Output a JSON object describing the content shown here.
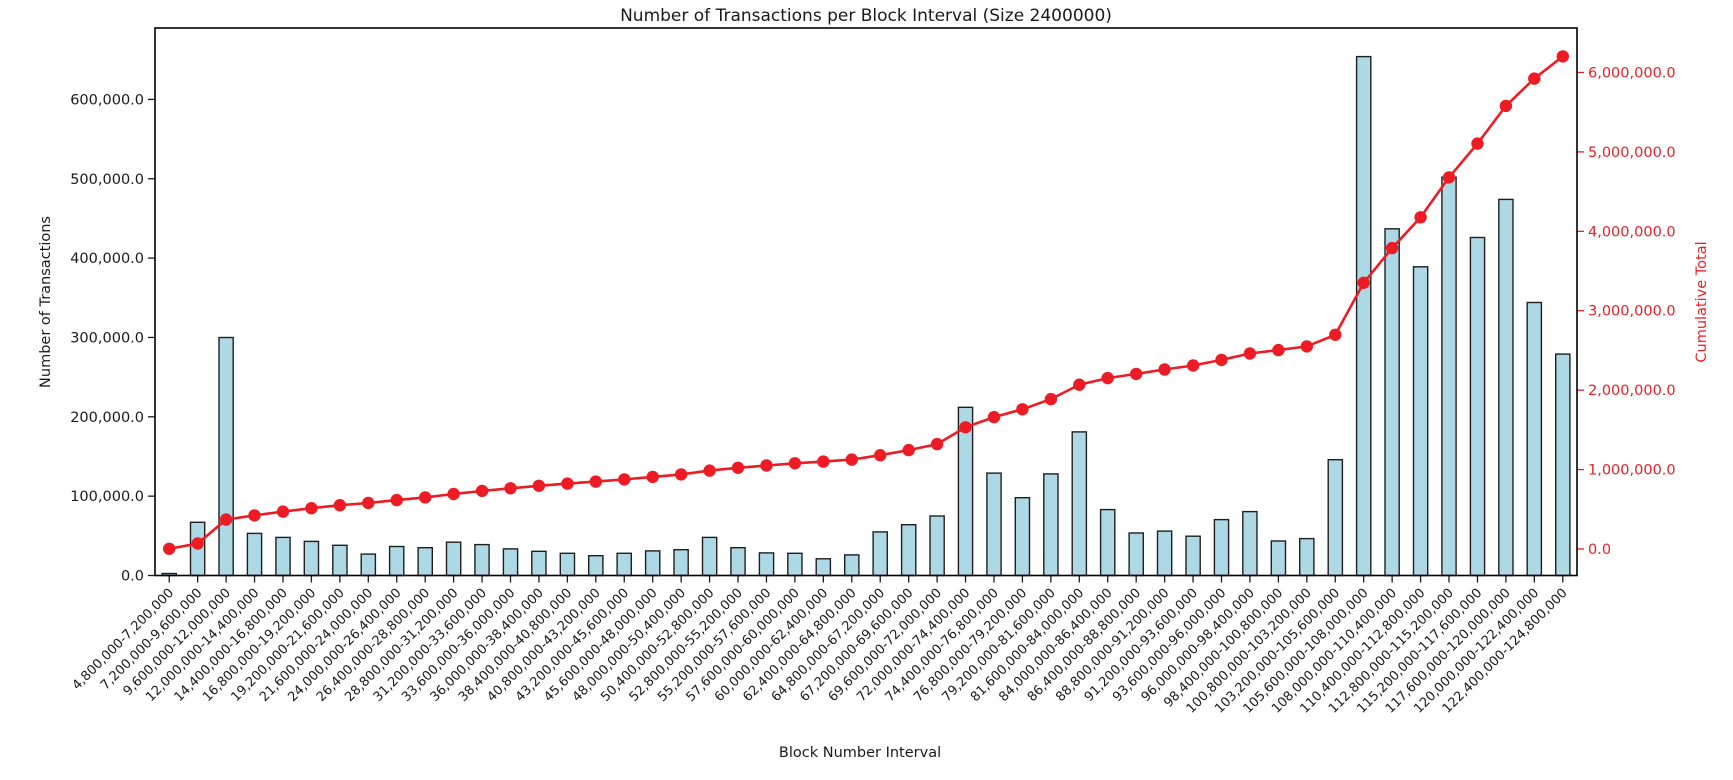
{
  "page": {
    "background": "#ffffff"
  },
  "chart_data": {
    "type": "bar",
    "title": "Number of Transactions per Block Interval (Size 2400000)",
    "xlabel": "Block Number Interval",
    "ylabel": "Number of Transactions",
    "ylabel_right": "Cumulative Total",
    "grid": false,
    "legend_position": "none",
    "text_color": "#1a1a1a",
    "categories": [
      "4,800,000-7,200,000",
      "7,200,000-9,600,000",
      "9,600,000-12,000,000",
      "12,000,000-14,400,000",
      "14,400,000-16,800,000",
      "16,800,000-19,200,000",
      "19,200,000-21,600,000",
      "21,600,000-24,000,000",
      "24,000,000-26,400,000",
      "26,400,000-28,800,000",
      "28,800,000-31,200,000",
      "31,200,000-33,600,000",
      "33,600,000-36,000,000",
      "36,000,000-38,400,000",
      "38,400,000-40,800,000",
      "40,800,000-43,200,000",
      "43,200,000-45,600,000",
      "45,600,000-48,000,000",
      "48,000,000-50,400,000",
      "50,400,000-52,800,000",
      "52,800,000-55,200,000",
      "55,200,000-57,600,000",
      "57,600,000-60,000,000",
      "60,000,000-62,400,000",
      "62,400,000-64,800,000",
      "64,800,000-67,200,000",
      "67,200,000-69,600,000",
      "69,600,000-72,000,000",
      "72,000,000-74,400,000",
      "74,400,000-76,800,000",
      "76,800,000-79,200,000",
      "79,200,000-81,600,000",
      "81,600,000-84,000,000",
      "84,000,000-86,400,000",
      "86,400,000-88,800,000",
      "88,800,000-91,200,000",
      "91,200,000-93,600,000",
      "93,600,000-96,000,000",
      "96,000,000-98,400,000",
      "98,400,000-100,800,000",
      "100,800,000-103,200,000",
      "103,200,000-105,600,000",
      "105,600,000-108,000,000",
      "108,000,000-110,400,000",
      "110,400,000-112,800,000",
      "112,800,000-115,200,000",
      "115,200,000-117,600,000",
      "117,600,000-120,000,000",
      "120,000,000-122,400,000",
      "122,400,000-124,800,000"
    ],
    "series": [
      {
        "name": "Number of Transactions",
        "type": "bar",
        "axis": "left",
        "color": "#add8e6",
        "edge_color": "#1f1f1f",
        "values": [
          2500,
          67000,
          300000,
          53000,
          48000,
          43000,
          38000,
          27000,
          36500,
          35000,
          42000,
          39000,
          33500,
          30500,
          28000,
          25000,
          28000,
          31000,
          32500,
          48000,
          35000,
          28500,
          28000,
          21000,
          26000,
          55000,
          64000,
          75000,
          212000,
          129000,
          98000,
          128000,
          181000,
          83000,
          53500,
          56000,
          49500,
          70500,
          80500,
          43500,
          46500,
          146000,
          654000,
          437000,
          389000,
          502000,
          426000,
          474000,
          344000,
          279000
        ]
      },
      {
        "name": "Cumulative Total",
        "type": "line",
        "axis": "right",
        "color": "#ed1c24",
        "marker": "circle",
        "values": [
          2500,
          69500,
          369500,
          422500,
          470500,
          513500,
          551500,
          578500,
          615000,
          650000,
          692000,
          731000,
          764500,
          795000,
          823000,
          848000,
          876000,
          907000,
          939500,
          987500,
          1022500,
          1051000,
          1079000,
          1100000,
          1126000,
          1181000,
          1245000,
          1320000,
          1532000,
          1661000,
          1759000,
          1887000,
          2068000,
          2151000,
          2204500,
          2260500,
          2310000,
          2380500,
          2461000,
          2504500,
          2551000,
          2697000,
          3351000,
          3788000,
          4177000,
          4679000,
          5105000,
          5579000,
          5923000,
          6202000
        ]
      }
    ],
    "left_axis": {
      "lim": [
        0,
        690000
      ],
      "tick_values": [
        0,
        100000,
        200000,
        300000,
        400000,
        500000,
        600000
      ],
      "tick_labels": [
        "0.0",
        "100,000.0",
        "200,000.0",
        "300,000.0",
        "400,000.0",
        "500,000.0",
        "600,000.0"
      ]
    },
    "right_axis": {
      "lim": [
        -334000,
        6560000
      ],
      "tick_values": [
        0,
        1000000,
        2000000,
        3000000,
        4000000,
        5000000,
        6000000
      ],
      "tick_labels": [
        "0.0",
        "1,000,000.0",
        "2,000,000.0",
        "3,000,000.0",
        "4,000,000.0",
        "5,000,000.0",
        "6,000,000.0"
      ],
      "color": "#ed1c24"
    }
  }
}
